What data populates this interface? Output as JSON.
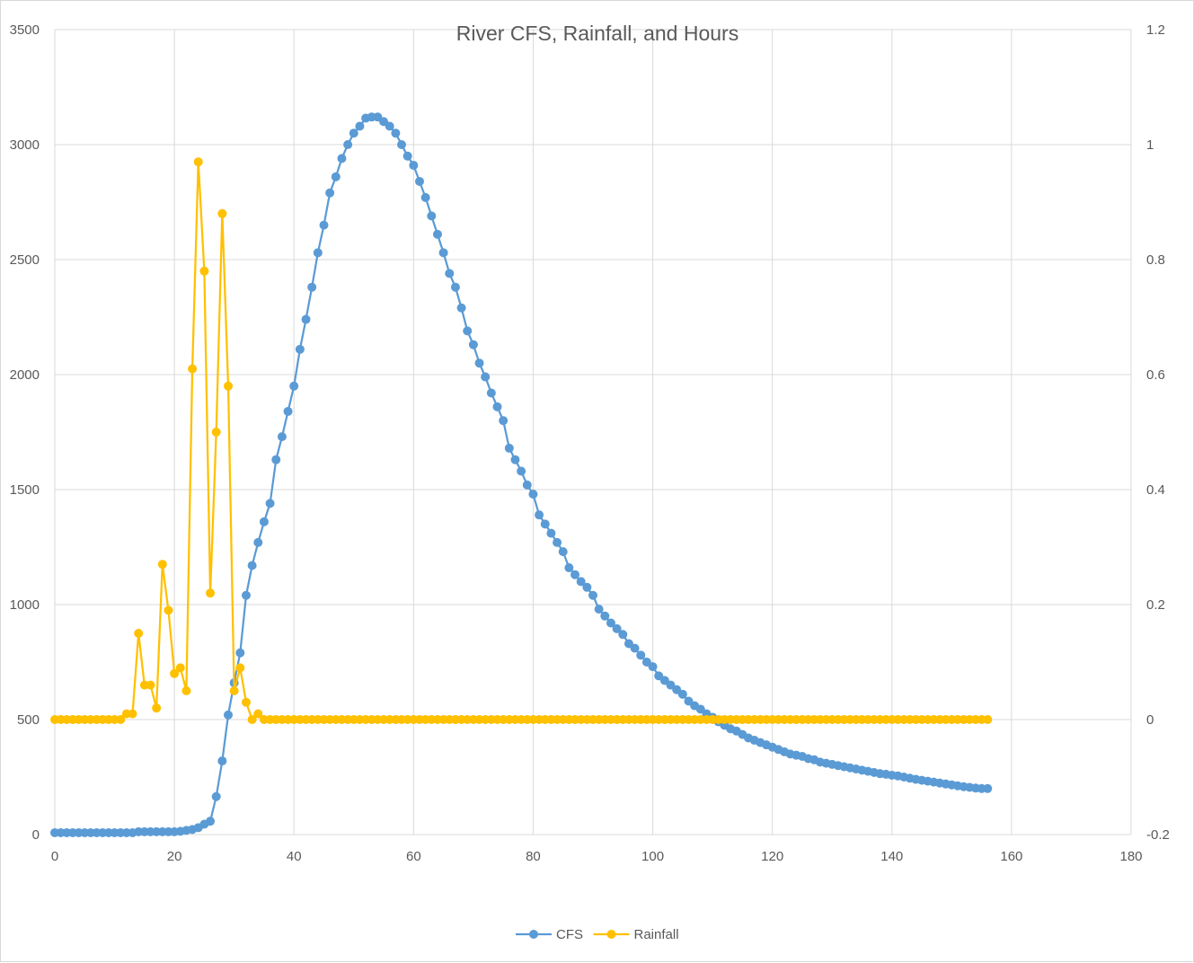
{
  "chart_data": {
    "type": "line",
    "title": "River CFS, Rainfall, and Hours",
    "xlabel": "",
    "ylabel": "",
    "y2label": "",
    "xlim": [
      0,
      180
    ],
    "ylim": [
      0,
      3500
    ],
    "y2lim": [
      -0.2,
      1.2
    ],
    "x_ticks": [
      0,
      20,
      40,
      60,
      80,
      100,
      120,
      140,
      160,
      180
    ],
    "y_ticks": [
      0,
      500,
      1000,
      1500,
      2000,
      2500,
      3000,
      3500
    ],
    "y2_ticks": [
      -0.2,
      0,
      0.2,
      0.4,
      0.6,
      0.8,
      1,
      1.2
    ],
    "grid": true,
    "legend_position": "bottom",
    "series": [
      {
        "name": "CFS",
        "axis": "left",
        "color": "#5b9bd5",
        "x": [
          0,
          1,
          2,
          3,
          4,
          5,
          6,
          7,
          8,
          9,
          10,
          11,
          12,
          13,
          14,
          15,
          16,
          17,
          18,
          19,
          20,
          21,
          22,
          23,
          24,
          25,
          26,
          27,
          28,
          29,
          30,
          31,
          32,
          33,
          34,
          35,
          36,
          37,
          38,
          39,
          40,
          41,
          42,
          43,
          44,
          45,
          46,
          47,
          48,
          49,
          50,
          51,
          52,
          53,
          54,
          55,
          56,
          57,
          58,
          59,
          60,
          61,
          62,
          63,
          64,
          65,
          66,
          67,
          68,
          69,
          70,
          71,
          72,
          73,
          74,
          75,
          76,
          77,
          78,
          79,
          80,
          81,
          82,
          83,
          84,
          85,
          86,
          87,
          88,
          89,
          90,
          91,
          92,
          93,
          94,
          95,
          96,
          97,
          98,
          99,
          100,
          101,
          102,
          103,
          104,
          105,
          106,
          107,
          108,
          109,
          110,
          111,
          112,
          113,
          114,
          115,
          116,
          117,
          118,
          119,
          120,
          121,
          122,
          123,
          124,
          125,
          126,
          127,
          128,
          129,
          130,
          131,
          132,
          133,
          134,
          135,
          136,
          137,
          138,
          139,
          140,
          141,
          142,
          143,
          144,
          145,
          146,
          147,
          148,
          149,
          150,
          151,
          152,
          153,
          154,
          155,
          156
        ],
        "values": [
          8,
          8,
          8,
          8,
          8,
          8,
          8,
          8,
          8,
          8,
          8,
          8,
          8,
          8,
          12,
          12,
          12,
          12,
          12,
          12,
          12,
          14,
          18,
          22,
          30,
          45,
          58,
          165,
          320,
          520,
          660,
          790,
          1040,
          1170,
          1270,
          1360,
          1440,
          1630,
          1730,
          1840,
          1950,
          2110,
          2240,
          2380,
          2530,
          2650,
          2790,
          2860,
          2940,
          3000,
          3050,
          3080,
          3115,
          3120,
          3120,
          3100,
          3080,
          3050,
          3000,
          2950,
          2910,
          2840,
          2770,
          2690,
          2610,
          2530,
          2440,
          2380,
          2290,
          2190,
          2130,
          2050,
          1990,
          1920,
          1860,
          1800,
          1680,
          1630,
          1580,
          1520,
          1480,
          1390,
          1350,
          1310,
          1270,
          1230,
          1160,
          1130,
          1100,
          1075,
          1040,
          980,
          950,
          920,
          895,
          870,
          830,
          810,
          780,
          750,
          730,
          690,
          670,
          650,
          630,
          610,
          580,
          560,
          545,
          525,
          510,
          490,
          475,
          460,
          450,
          435,
          420,
          410,
          400,
          390,
          380,
          370,
          360,
          350,
          345,
          340,
          330,
          325,
          315,
          310,
          305,
          300,
          295,
          290,
          285,
          280,
          275,
          270,
          265,
          262,
          258,
          255,
          250,
          245,
          240,
          236,
          232,
          228,
          224,
          220,
          216,
          212,
          208,
          205,
          202,
          200,
          200
        ]
      },
      {
        "name": "Rainfall",
        "axis": "right",
        "color": "#ffc000",
        "x": [
          0,
          1,
          2,
          3,
          4,
          5,
          6,
          7,
          8,
          9,
          10,
          11,
          12,
          13,
          14,
          15,
          16,
          17,
          18,
          19,
          20,
          21,
          22,
          23,
          24,
          25,
          26,
          27,
          28,
          29,
          30,
          31,
          32,
          33,
          34,
          35,
          36,
          37,
          38,
          39,
          40,
          41,
          42,
          43,
          44,
          45,
          46,
          47,
          48,
          49,
          50,
          51,
          52,
          53,
          54,
          55,
          56,
          57,
          58,
          59,
          60,
          61,
          62,
          63,
          64,
          65,
          66,
          67,
          68,
          69,
          70,
          71,
          72,
          73,
          74,
          75,
          76,
          77,
          78,
          79,
          80,
          81,
          82,
          83,
          84,
          85,
          86,
          87,
          88,
          89,
          90,
          91,
          92,
          93,
          94,
          95,
          96,
          97,
          98,
          99,
          100,
          101,
          102,
          103,
          104,
          105,
          106,
          107,
          108,
          109,
          110,
          111,
          112,
          113,
          114,
          115,
          116,
          117,
          118,
          119,
          120,
          121,
          122,
          123,
          124,
          125,
          126,
          127,
          128,
          129,
          130,
          131,
          132,
          133,
          134,
          135,
          136,
          137,
          138,
          139,
          140,
          141,
          142,
          143,
          144,
          145,
          146,
          147,
          148,
          149,
          150,
          151,
          152,
          153,
          154,
          155,
          156
        ],
        "values": [
          0,
          0,
          0,
          0,
          0,
          0,
          0,
          0,
          0,
          0,
          0,
          0,
          0.01,
          0.01,
          0.15,
          0.06,
          0.06,
          0.02,
          0.27,
          0.19,
          0.08,
          0.09,
          0.05,
          0.61,
          0.97,
          0.78,
          0.22,
          0.5,
          0.88,
          0.58,
          0.05,
          0.09,
          0.03,
          0,
          0.01,
          0,
          0,
          0,
          0,
          0,
          0,
          0,
          0,
          0,
          0,
          0,
          0,
          0,
          0,
          0,
          0,
          0,
          0,
          0,
          0,
          0,
          0,
          0,
          0,
          0,
          0,
          0,
          0,
          0,
          0,
          0,
          0,
          0,
          0,
          0,
          0,
          0,
          0,
          0,
          0,
          0,
          0,
          0,
          0,
          0,
          0,
          0,
          0,
          0,
          0,
          0,
          0,
          0,
          0,
          0,
          0,
          0,
          0,
          0,
          0,
          0,
          0,
          0,
          0,
          0,
          0,
          0,
          0,
          0,
          0,
          0,
          0,
          0,
          0,
          0,
          0,
          0,
          0,
          0,
          0,
          0,
          0,
          0,
          0,
          0,
          0,
          0,
          0,
          0,
          0,
          0,
          0,
          0,
          0,
          0,
          0,
          0,
          0,
          0,
          0,
          0,
          0,
          0,
          0,
          0,
          0,
          0,
          0,
          0,
          0,
          0,
          0,
          0,
          0,
          0,
          0,
          0,
          0,
          0,
          0,
          0,
          0
        ]
      }
    ]
  }
}
